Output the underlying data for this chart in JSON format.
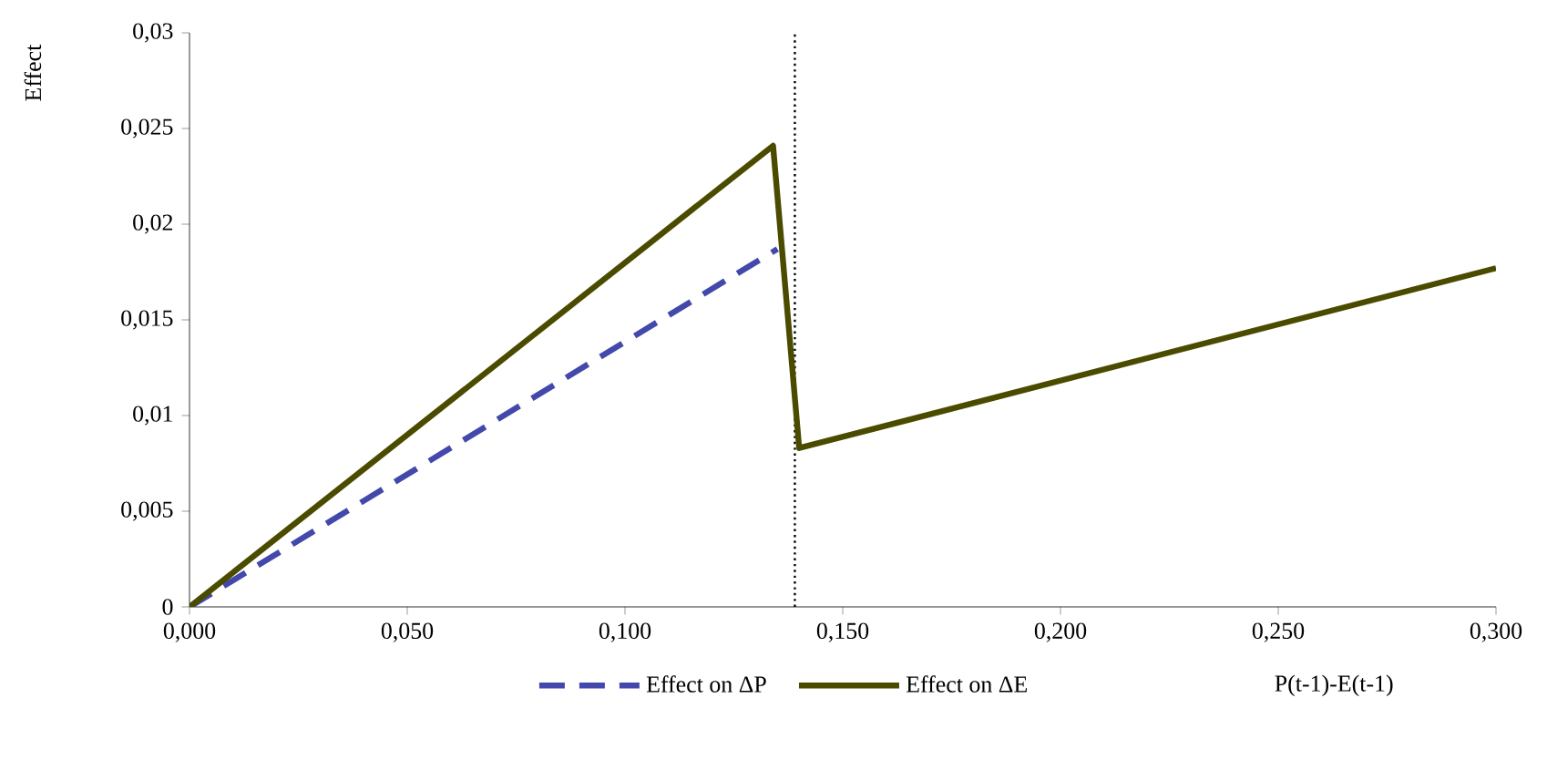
{
  "chart_data": {
    "type": "line",
    "ylabel": "Effect",
    "xlabel": "P(t-1)-E(t-1)",
    "xlim": [
      0,
      0.3
    ],
    "ylim": [
      0,
      0.03
    ],
    "xticks": [
      {
        "value": 0,
        "label": "0,000"
      },
      {
        "value": 0.05,
        "label": "0,050"
      },
      {
        "value": 0.1,
        "label": "0,100"
      },
      {
        "value": 0.15,
        "label": "0,150"
      },
      {
        "value": 0.2,
        "label": "0,200"
      },
      {
        "value": 0.25,
        "label": "0,250"
      },
      {
        "value": 0.3,
        "label": "0,300"
      }
    ],
    "yticks": [
      0,
      {
        "value": 0.005,
        "label": "0,005"
      },
      {
        "value": 0.01,
        "label": "0,01"
      },
      {
        "value": 0.015,
        "label": "0,015"
      },
      {
        "value": 0.02,
        "label": "0,02"
      },
      {
        "value": 0.025,
        "label": "0,025"
      },
      {
        "value": 0.03,
        "label": "0,03"
      }
    ],
    "series": [
      {
        "name": "Effect on ΔP",
        "color": "#4349ab",
        "line_style": "dashed",
        "x": [
          0,
          0.135
        ],
        "values": [
          0,
          0.0187
        ]
      },
      {
        "name": "Effect on ΔE",
        "color": "#4b4b00",
        "line_style": "solid",
        "x": [
          0,
          0.134,
          0.14,
          0.3
        ],
        "values": [
          0,
          0.0241,
          0.0083,
          0.0177
        ]
      }
    ],
    "ref_lines": [
      {
        "axis": "x",
        "value": 0.139,
        "color": "#000000",
        "line_style": "dotted"
      }
    ],
    "legend": "bottom",
    "grid": false,
    "marker": "none"
  }
}
